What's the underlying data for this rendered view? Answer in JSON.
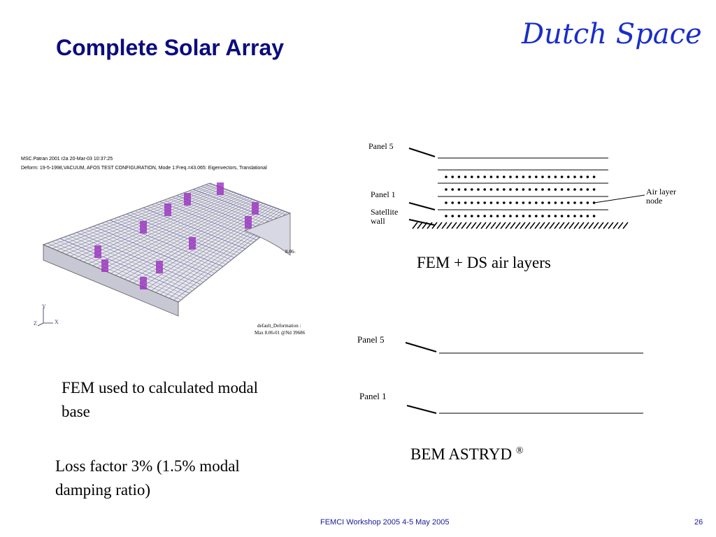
{
  "header": {
    "title": "Complete Solar Array",
    "logo": "Dutch Space"
  },
  "fem_image": {
    "line1": "MSC.Patran 2001 r2a 20-Mar-03 10:37:25",
    "line2": "Deform: 19-5-1998,VACUUM, AFOS TEST CONFIGURATION, Mode 1:Freq.=43.065: Eigenvectors, Translational",
    "edge_label": "8.06-",
    "axis_y": "Y",
    "axis_z": "Z",
    "axis_x": "X",
    "legend1": "default_Deformation :",
    "legend2": "Max 8.06-01 @Nd 39686"
  },
  "diagram_fem": {
    "panel5": "Panel 5",
    "panel1": "Panel 1",
    "wall": "Satellite wall",
    "air": "Air layer node",
    "caption": "FEM + DS air layers"
  },
  "diagram_bem": {
    "panel5": "Panel 5",
    "panel1": "Panel 1",
    "caption": "BEM ASTRYD",
    "mark": "®"
  },
  "notes": {
    "fem": "FEM used to calculated modal base",
    "loss": "Loss factor 3% (1.5% modal damping ratio)"
  },
  "footer": {
    "text": "FEMCI Workshop 2005 4-5  May 2005",
    "page": "26"
  }
}
